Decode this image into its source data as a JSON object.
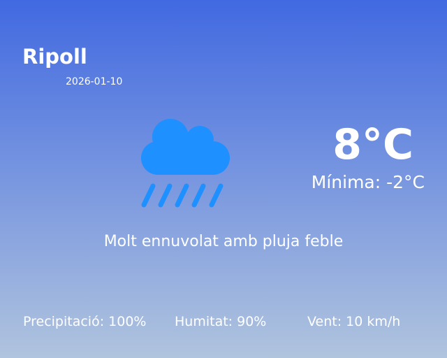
{
  "location": "Ripoll",
  "date": "2026-01-10",
  "temperature": "8°C",
  "minimum": "Mínima: -2°C",
  "description": "Molt ennuvolat amb pluja feble",
  "icon": "cloud-rain-icon",
  "icon_color": "#1E90FF",
  "stats": {
    "precipitation": "Precipitació: 100%",
    "humidity": "Humitat: 90%",
    "wind": "Vent: 10 km/h"
  }
}
